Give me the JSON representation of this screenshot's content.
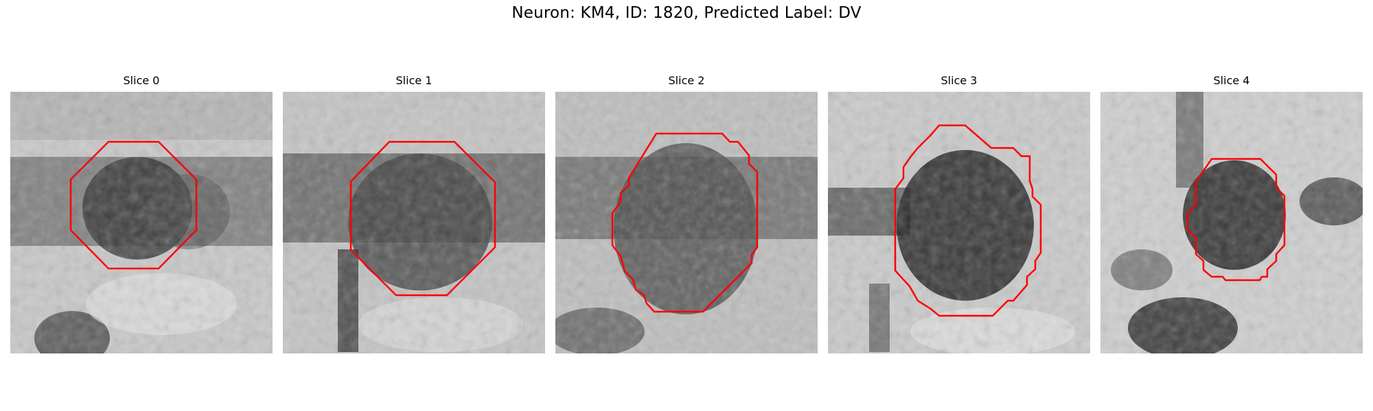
{
  "figure": {
    "title": "Neuron: KM4, ID: 1820, Predicted Label: DV"
  },
  "panels": [
    {
      "title": "Slice 0"
    },
    {
      "title": "Slice 1"
    },
    {
      "title": "Slice 2"
    },
    {
      "title": "Slice 3"
    },
    {
      "title": "Slice 4"
    }
  ],
  "colors": {
    "contour": "#ff0000",
    "background": "#ffffff"
  }
}
